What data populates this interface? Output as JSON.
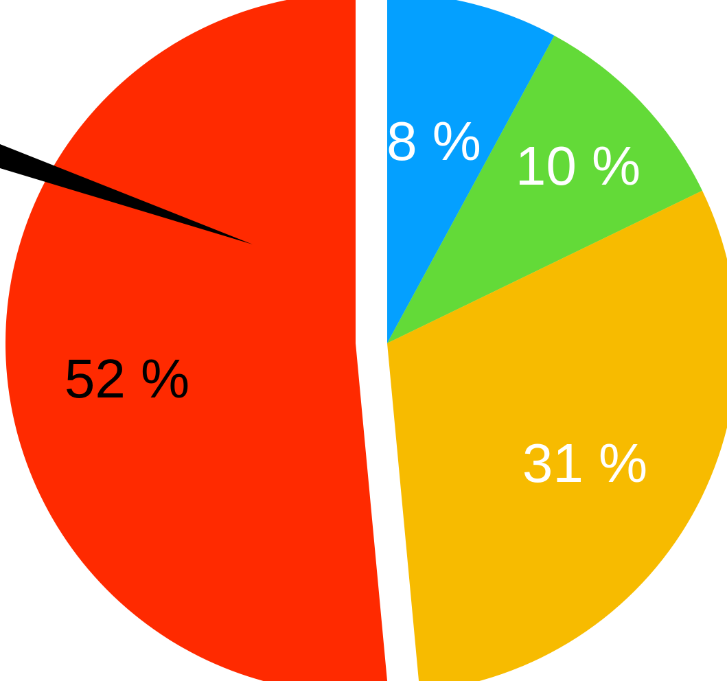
{
  "chart_data": {
    "type": "pie",
    "slices": [
      {
        "label": "8 %",
        "value": 8,
        "color": "#04A0FF",
        "label_color": "#FFFFFF"
      },
      {
        "label": "10 %",
        "value": 10,
        "color": "#63DA38",
        "label_color": "#FFFFFF"
      },
      {
        "label": "31 %",
        "value": 31,
        "color": "#F7BB00",
        "label_color": "#FFFFFF"
      },
      {
        "label": "52 %",
        "value": 52,
        "color": "#FF2A00",
        "label_color": "#000000"
      }
    ],
    "exploded": "slice separation gaps (white)",
    "pointer_color": "#000000"
  }
}
